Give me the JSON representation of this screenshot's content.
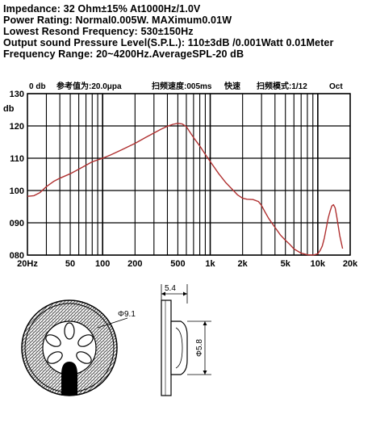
{
  "specs": [
    "Impedance: 32 Ohm±15%  At1000Hz/1.0V",
    "Power Rating: Normal0.005W. MAXimum0.01W",
    "Lowest Resond Frequency: 530±150Hz",
    "Output sound Pressure Level(S.P.L.): 110±3dB /0.001Watt 0.01Meter",
    "Frequency Range: 20~4200Hz.AverageSPL-20 dB"
  ],
  "chart_header": {
    "ref": "0 db",
    "ref_value": "参考值为:20.0μpa",
    "sweep_speed": "扫频速度:005ms",
    "speed_mode": "快速",
    "sweep_mode": "扫频模式:1/12",
    "oct": "Oct"
  },
  "colors": {
    "curve": "#b03030",
    "grid": "#000000"
  },
  "chart_data": {
    "type": "line",
    "ylabel": "db",
    "ylim": [
      80,
      130
    ],
    "xlim": [
      20,
      20000
    ],
    "xscale": "log",
    "grid": true,
    "yticks": [
      {
        "value": 80,
        "label": "080"
      },
      {
        "value": 90,
        "label": "090"
      },
      {
        "value": 100,
        "label": "100"
      },
      {
        "value": 110,
        "label": "110"
      },
      {
        "value": 120,
        "label": "120"
      },
      {
        "value": 130,
        "label": "130"
      }
    ],
    "xticks": [
      {
        "value": 20,
        "label": "20Hz"
      },
      {
        "value": 50,
        "label": "50"
      },
      {
        "value": 100,
        "label": "100"
      },
      {
        "value": 200,
        "label": "200"
      },
      {
        "value": 500,
        "label": "500"
      },
      {
        "value": 1000,
        "label": "1k"
      },
      {
        "value": 2000,
        "label": "2k"
      },
      {
        "value": 5000,
        "label": "5k"
      },
      {
        "value": 10000,
        "label": "10k"
      },
      {
        "value": 20000,
        "label": "20k"
      }
    ],
    "series": [
      {
        "x": [
          20,
          23,
          26,
          30,
          35,
          40,
          50,
          60,
          70,
          80,
          100,
          120,
          150,
          200,
          250,
          300,
          350,
          400,
          450,
          500,
          550,
          600,
          650,
          700,
          800,
          900,
          1000,
          1200,
          1400,
          1600,
          1800,
          2000,
          2200,
          2500,
          2800,
          3000,
          3200,
          3500,
          4000,
          4500,
          5000,
          5500,
          6000,
          7000,
          8000,
          9000,
          10000,
          10500,
          11000,
          11500,
          12000,
          12500,
          13000,
          13500,
          14000,
          14500,
          15000,
          16000,
          17000
        ],
        "y": [
          98.2,
          98.4,
          99.3,
          101.2,
          102.8,
          103.8,
          105.2,
          106.6,
          107.8,
          108.9,
          110.0,
          111.1,
          112.6,
          114.6,
          116.4,
          117.8,
          119.0,
          119.9,
          120.5,
          120.8,
          120.6,
          119.8,
          118.0,
          116.4,
          113.8,
          111.2,
          109.0,
          105.2,
          102.4,
          100.4,
          98.6,
          97.6,
          97.3,
          97.2,
          96.6,
          95.4,
          93.6,
          91.3,
          88.6,
          86.2,
          84.6,
          83.3,
          81.9,
          80.6,
          80.1,
          80.0,
          80.4,
          81.4,
          82.8,
          85.3,
          88.4,
          91.5,
          93.6,
          95.2,
          95.6,
          94.6,
          92.0,
          86.0,
          82.0
        ]
      }
    ]
  },
  "drawing": {
    "front_dia": "Φ9.1",
    "width_dim": "5.4",
    "side_dia": "Φ5.8"
  }
}
